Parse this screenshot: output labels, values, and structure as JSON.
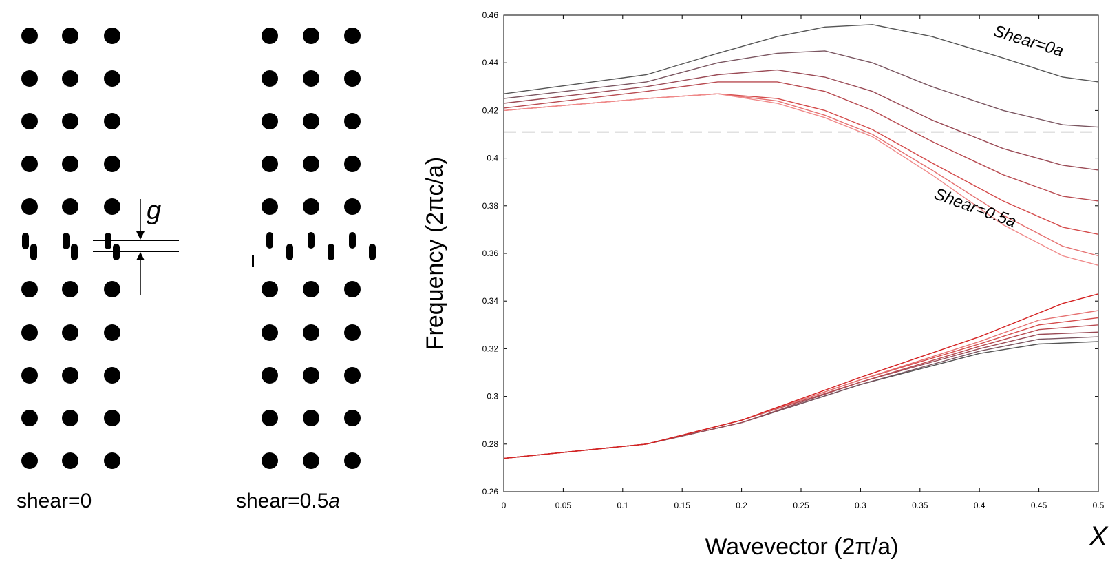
{
  "lattice_panels": {
    "left": {
      "label_text": "shear=",
      "label_value": "0",
      "label_suffix": ""
    },
    "right": {
      "label_text": "shear=",
      "label_value": "0.5",
      "label_suffix": "a"
    },
    "gap_label": "g"
  },
  "chart_data": {
    "type": "line",
    "xlabel": "Wavevector (2π/a)",
    "ylabel": "Frequency (2πc/a)",
    "xlim": [
      0,
      0.5
    ],
    "ylim": [
      0.26,
      0.46
    ],
    "x_ticks": [
      "0",
      "0.05",
      "0.1",
      "0.15",
      "0.2",
      "0.25",
      "0.3",
      "0.35",
      "0.4",
      "0.45",
      "0.5"
    ],
    "y_ticks": [
      "0.26",
      "0.28",
      "0.3",
      "0.32",
      "0.34",
      "0.36",
      "0.38",
      "0.4",
      "0.42",
      "0.44",
      "0.46"
    ],
    "corner_label": "X",
    "reference_line": {
      "y": 0.411,
      "style": "dashed",
      "color": "#888888"
    },
    "annotations": [
      {
        "text": "Shear=0a",
        "x": 0.44,
        "y": 0.447,
        "rotation": 17
      },
      {
        "text": "Shear=0.5a",
        "x": 0.395,
        "y": 0.377,
        "rotation": 20
      }
    ],
    "grid": false,
    "series": [
      {
        "band": "upper",
        "color": "#555555",
        "x": [
          0,
          0.12,
          0.18,
          0.23,
          0.27,
          0.31,
          0.36,
          0.42,
          0.47,
          0.5
        ],
        "y": [
          0.427,
          0.435,
          0.444,
          0.451,
          0.455,
          0.456,
          0.451,
          0.442,
          0.434,
          0.432
        ]
      },
      {
        "band": "upper",
        "color": "#7a5560",
        "x": [
          0,
          0.12,
          0.18,
          0.23,
          0.27,
          0.31,
          0.36,
          0.42,
          0.47,
          0.5
        ],
        "y": [
          0.425,
          0.432,
          0.44,
          0.444,
          0.445,
          0.44,
          0.43,
          0.42,
          0.414,
          0.413
        ]
      },
      {
        "band": "upper",
        "color": "#9a4a55",
        "x": [
          0,
          0.12,
          0.18,
          0.23,
          0.27,
          0.31,
          0.36,
          0.42,
          0.47,
          0.5
        ],
        "y": [
          0.423,
          0.43,
          0.435,
          0.437,
          0.434,
          0.428,
          0.416,
          0.404,
          0.397,
          0.395
        ]
      },
      {
        "band": "upper",
        "color": "#b84a50",
        "x": [
          0,
          0.12,
          0.18,
          0.23,
          0.27,
          0.31,
          0.36,
          0.42,
          0.47,
          0.5
        ],
        "y": [
          0.421,
          0.428,
          0.432,
          0.432,
          0.428,
          0.42,
          0.407,
          0.393,
          0.384,
          0.382
        ]
      },
      {
        "band": "upper",
        "color": "#d44a4a",
        "x": [
          0,
          0.12,
          0.18,
          0.23,
          0.27,
          0.31,
          0.36,
          0.42,
          0.47,
          0.5
        ],
        "y": [
          0.42,
          0.425,
          0.427,
          0.425,
          0.42,
          0.412,
          0.398,
          0.382,
          0.371,
          0.368
        ]
      },
      {
        "band": "upper",
        "color": "#e57070",
        "x": [
          0,
          0.12,
          0.18,
          0.23,
          0.27,
          0.31,
          0.36,
          0.42,
          0.47,
          0.5
        ],
        "y": [
          0.42,
          0.425,
          0.427,
          0.424,
          0.418,
          0.41,
          0.395,
          0.376,
          0.363,
          0.359
        ]
      },
      {
        "band": "upper",
        "color": "#f08a8a",
        "x": [
          0,
          0.12,
          0.18,
          0.23,
          0.27,
          0.31,
          0.36,
          0.42,
          0.47,
          0.5
        ],
        "y": [
          0.42,
          0.425,
          0.427,
          0.423,
          0.417,
          0.409,
          0.393,
          0.372,
          0.359,
          0.355
        ]
      },
      {
        "band": "lower",
        "color": "#555555",
        "x": [
          0,
          0.12,
          0.2,
          0.3,
          0.4,
          0.45,
          0.5
        ],
        "y": [
          0.274,
          0.28,
          0.289,
          0.305,
          0.318,
          0.322,
          0.323
        ]
      },
      {
        "band": "lower",
        "color": "#7a5560",
        "x": [
          0,
          0.12,
          0.2,
          0.3,
          0.4,
          0.45,
          0.5
        ],
        "y": [
          0.274,
          0.28,
          0.289,
          0.305,
          0.319,
          0.324,
          0.325
        ]
      },
      {
        "band": "lower",
        "color": "#9a4a55",
        "x": [
          0,
          0.12,
          0.2,
          0.3,
          0.4,
          0.45,
          0.5
        ],
        "y": [
          0.274,
          0.28,
          0.289,
          0.306,
          0.32,
          0.326,
          0.327
        ]
      },
      {
        "band": "lower",
        "color": "#b84a50",
        "x": [
          0,
          0.12,
          0.2,
          0.3,
          0.4,
          0.45,
          0.5
        ],
        "y": [
          0.274,
          0.28,
          0.29,
          0.306,
          0.321,
          0.328,
          0.33
        ]
      },
      {
        "band": "lower",
        "color": "#d44a4a",
        "x": [
          0,
          0.12,
          0.2,
          0.3,
          0.4,
          0.45,
          0.5
        ],
        "y": [
          0.274,
          0.28,
          0.29,
          0.307,
          0.322,
          0.33,
          0.333
        ]
      },
      {
        "band": "lower",
        "color": "#e57070",
        "x": [
          0,
          0.12,
          0.2,
          0.3,
          0.4,
          0.45,
          0.5
        ],
        "y": [
          0.274,
          0.28,
          0.29,
          0.307,
          0.323,
          0.332,
          0.336
        ]
      },
      {
        "band": "lower",
        "color": "#d42020",
        "x": [
          0,
          0.12,
          0.2,
          0.3,
          0.4,
          0.47,
          0.5
        ],
        "y": [
          0.274,
          0.28,
          0.29,
          0.308,
          0.325,
          0.339,
          0.343
        ]
      }
    ]
  }
}
